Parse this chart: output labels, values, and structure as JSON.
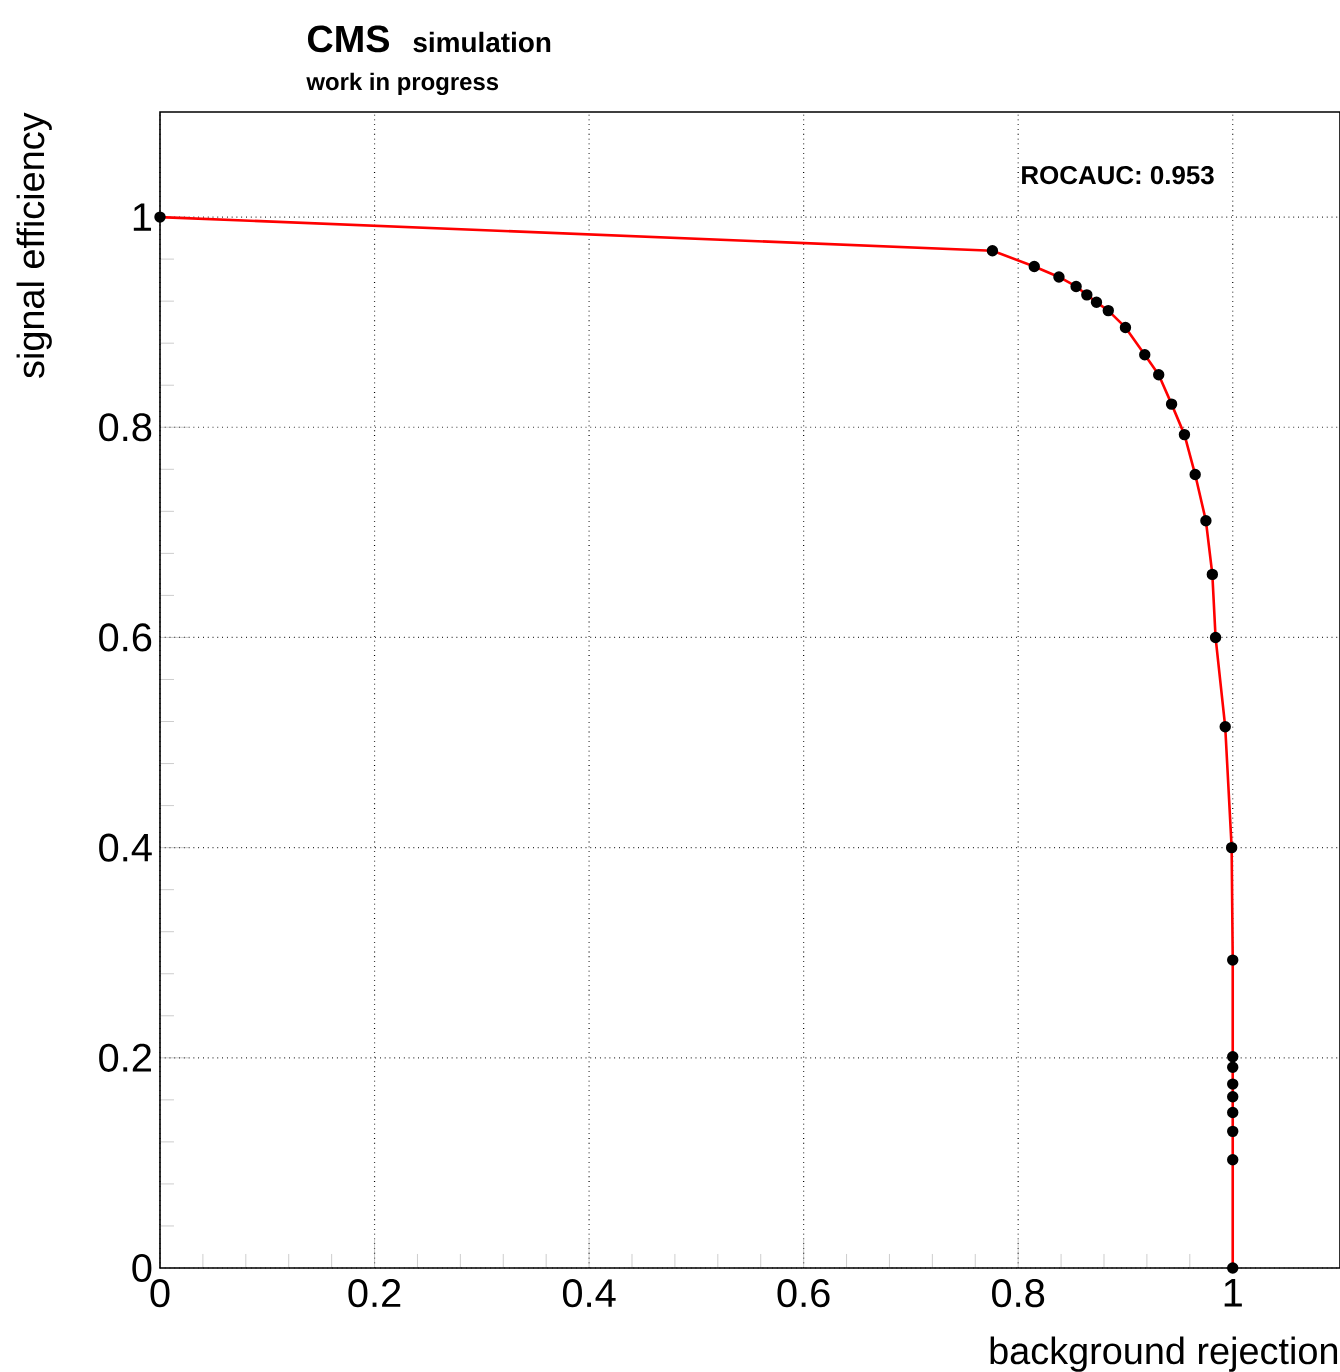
{
  "chart_data": {
    "type": "line",
    "title": "CMS",
    "subtitle": "simulation",
    "xlabel": "background rejection",
    "ylabel": "signal efficiency",
    "annotations": [
      "work in progress",
      "ROCAUC: 0.953"
    ],
    "series": [
      {
        "color": "#ff0000",
        "x": [
          0,
          0.776,
          0.815,
          0.838,
          0.854,
          0.864,
          0.873,
          0.884,
          0.9,
          0.918,
          0.931,
          0.943,
          0.955,
          0.965,
          0.975,
          0.981,
          0.984,
          0.993,
          0.999,
          1.0,
          1.0,
          1.0,
          1.0,
          1.0,
          1.0,
          1.0,
          1.0,
          1.0
        ],
        "values": [
          1.0,
          0.968,
          0.953,
          0.943,
          0.934,
          0.926,
          0.919,
          0.911,
          0.895,
          0.869,
          0.85,
          0.822,
          0.793,
          0.755,
          0.711,
          0.66,
          0.6,
          0.515,
          0.4,
          0.293,
          0.201,
          0.191,
          0.175,
          0.163,
          0.148,
          0.13,
          0.103,
          0
        ]
      }
    ],
    "marker": "circle",
    "xlim": [
      0,
      1.1
    ],
    "ylim": [
      0,
      1.1
    ],
    "xticks": [
      0,
      0.2,
      0.4,
      0.6,
      0.8,
      1
    ],
    "yticks": [
      0,
      0.2,
      0.4,
      0.6,
      0.8,
      1
    ],
    "grid": true
  }
}
